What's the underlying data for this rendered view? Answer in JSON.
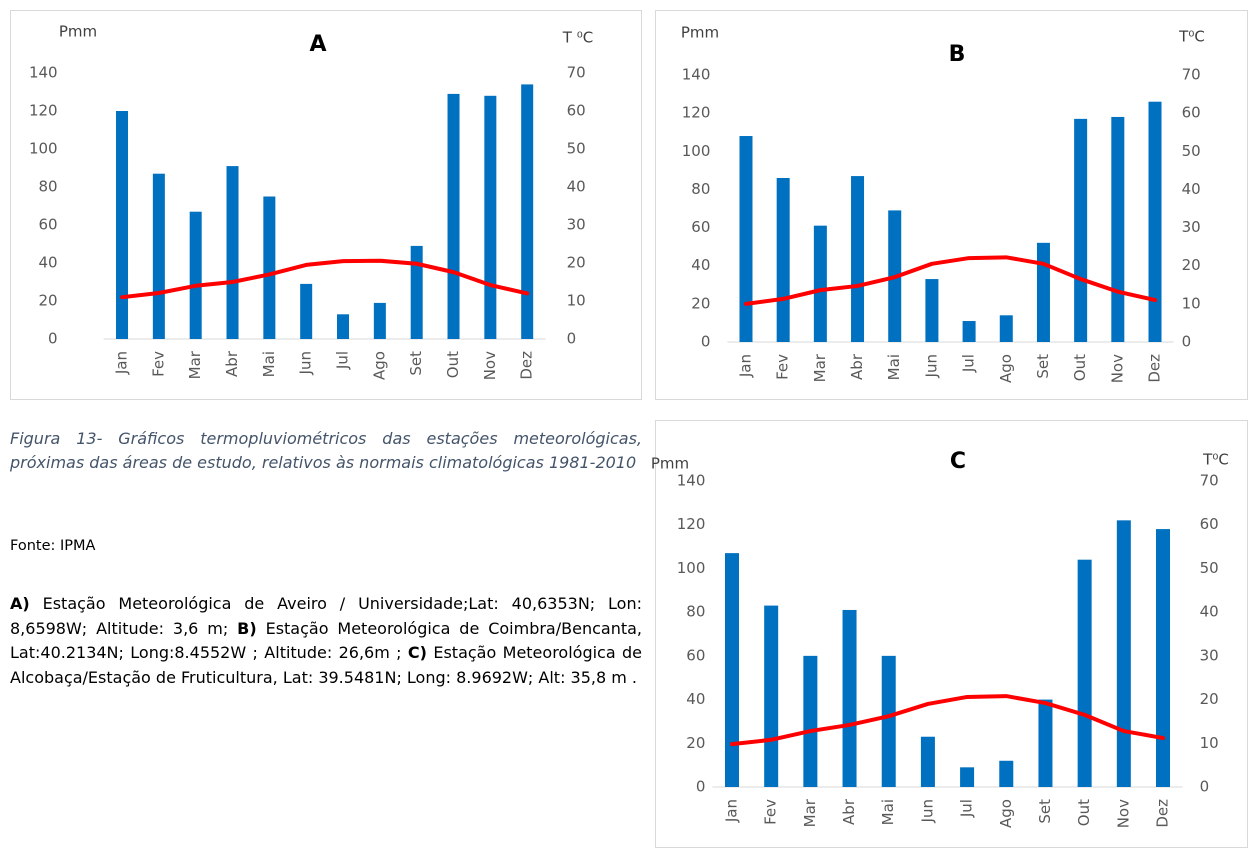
{
  "chart_data": [
    {
      "type": "bar",
      "title": "A",
      "ylabel": "Pmm",
      "y2label": "T ⁰C",
      "categories": [
        "Jan",
        "Fev",
        "Mar",
        "Abr",
        "Mai",
        "Jun",
        "Jul",
        "Ago",
        "Set",
        "Out",
        "Nov",
        "Dez"
      ],
      "series": [
        {
          "color": "#0070c0",
          "values": [
            120,
            87,
            67,
            91,
            75,
            29,
            13,
            19,
            49,
            129,
            128,
            134
          ]
        },
        {
          "type": "line",
          "axis": "y2",
          "color": "#ff0000",
          "values": [
            11,
            12.1,
            14,
            15,
            17,
            19.5,
            20.5,
            20.6,
            19.8,
            17.6,
            14.2,
            12
          ]
        }
      ],
      "ylim": [
        0,
        140
      ],
      "yticks": [
        0,
        20,
        40,
        60,
        80,
        100,
        120,
        140
      ],
      "y2lim": [
        0,
        70
      ],
      "y2ticks": [
        0,
        10,
        20,
        30,
        40,
        50,
        60,
        70
      ],
      "grid": false
    },
    {
      "type": "bar",
      "title": "B",
      "ylabel": "Pmm",
      "y2label": "T⁰C",
      "categories": [
        "Jan",
        "Fev",
        "Mar",
        "Abr",
        "Mai",
        "Jun",
        "Jul",
        "Ago",
        "Set",
        "Out",
        "Nov",
        "Dez"
      ],
      "series": [
        {
          "color": "#0070c0",
          "values": [
            108,
            86,
            61,
            87,
            69,
            33,
            11,
            14,
            52,
            117,
            118,
            126
          ]
        },
        {
          "type": "line",
          "axis": "y2",
          "color": "#ff0000",
          "values": [
            10,
            11.3,
            13.6,
            14.7,
            17,
            20.5,
            22,
            22.2,
            20.5,
            16.5,
            13.2,
            11
          ]
        }
      ],
      "ylim": [
        0,
        140
      ],
      "yticks": [
        0,
        20,
        40,
        60,
        80,
        100,
        120,
        140
      ],
      "y2lim": [
        0,
        70
      ],
      "y2ticks": [
        0,
        10,
        20,
        30,
        40,
        50,
        60,
        70
      ],
      "grid": false
    },
    {
      "type": "bar",
      "title": "C",
      "ylabel": "Pmm",
      "y2label": "T⁰C",
      "categories": [
        "Jan",
        "Fev",
        "Mar",
        "Abr",
        "Mai",
        "Jun",
        "Jul",
        "Ago",
        "Set",
        "Out",
        "Nov",
        "Dez"
      ],
      "series": [
        {
          "color": "#0070c0",
          "values": [
            107,
            83,
            60,
            81,
            60,
            23,
            9,
            12,
            40,
            104,
            122,
            118
          ]
        },
        {
          "type": "line",
          "axis": "y2",
          "color": "#ff0000",
          "values": [
            9.8,
            10.8,
            12.8,
            14.2,
            16.2,
            19,
            20.6,
            20.8,
            19.2,
            16.5,
            12.8,
            11.2
          ]
        }
      ],
      "ylim": [
        0,
        140
      ],
      "yticks": [
        0,
        20,
        40,
        60,
        80,
        100,
        120,
        140
      ],
      "y2lim": [
        0,
        70
      ],
      "y2ticks": [
        0,
        10,
        20,
        30,
        40,
        50,
        60,
        70
      ],
      "grid": false
    }
  ],
  "caption": "Figura 13- Gráficos termopluviométricos das estações meteorológicas, próximas das áreas de estudo, relativos às normais climatológicas 1981-2010",
  "source": "Fonte: IPMA",
  "description": [
    {
      "label": "A)",
      "text": "Estação Meteorológica de Aveiro / Universidade;Lat: 40,6353N; Lon: 8,6598W; Altitude: 3,6 m;"
    },
    {
      "label": "B)",
      "text": "Estação Meteorológica de Coimbra/Bencanta, Lat:40.2134N; Long:8.4552W ; Altitude: 26,6m ;"
    },
    {
      "label": "C)",
      "text": "Estação Meteorológica de Alcobaça/Estação de Fruticultura, Lat: 39.5481N; Long: 8.9692W; Alt: 35,8 m ."
    }
  ]
}
